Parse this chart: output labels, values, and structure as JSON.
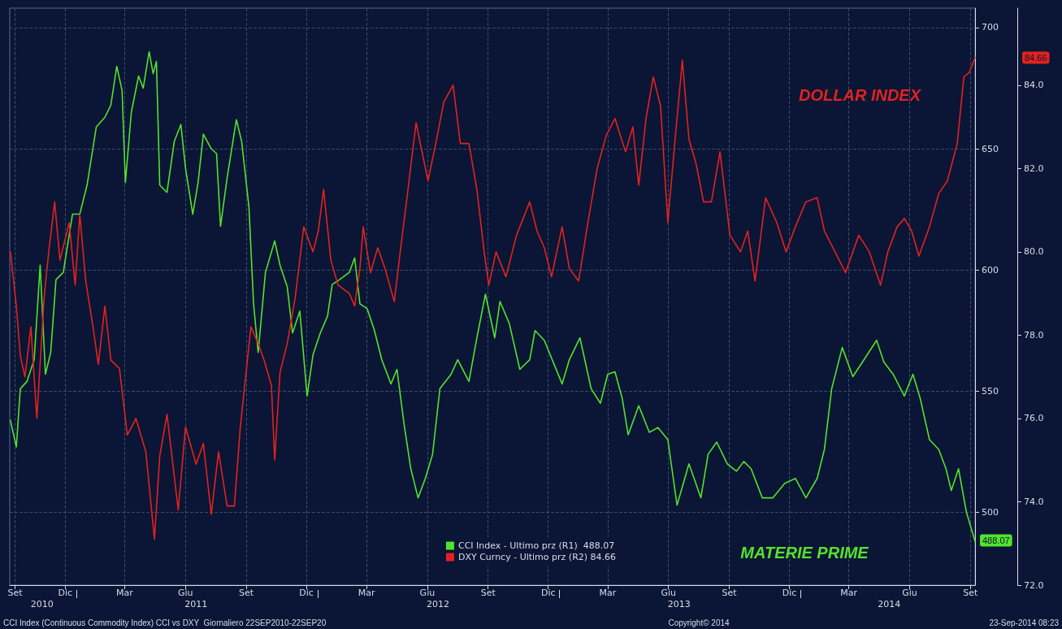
{
  "chart_data": {
    "type": "line",
    "legend": "bottom",
    "grid": true,
    "xlim": [
      "2010-09-22",
      "2014-09-22"
    ],
    "xticks": [
      {
        "value": "2010-09-30",
        "label": "Set"
      },
      {
        "value": "2010-12-15",
        "label": "Dic"
      },
      {
        "value": "2011-03-15",
        "label": "Mar"
      },
      {
        "value": "2011-06-15",
        "label": "Giu"
      },
      {
        "value": "2011-09-15",
        "label": "Set"
      },
      {
        "value": "2011-12-15",
        "label": "Dic"
      },
      {
        "value": "2012-03-15",
        "label": "Mar"
      },
      {
        "value": "2012-06-15",
        "label": "Giu"
      },
      {
        "value": "2012-09-15",
        "label": "Set"
      },
      {
        "value": "2012-12-15",
        "label": "Dic"
      },
      {
        "value": "2013-03-15",
        "label": "Mar"
      },
      {
        "value": "2013-06-15",
        "label": "Giu"
      },
      {
        "value": "2013-09-15",
        "label": "Set"
      },
      {
        "value": "2013-12-15",
        "label": "Dic"
      },
      {
        "value": "2014-03-15",
        "label": "Mar"
      },
      {
        "value": "2014-06-15",
        "label": "Giu"
      },
      {
        "value": "2014-09-15",
        "label": "Set"
      }
    ],
    "x2lim": [
      "2010-09-22",
      "2014-09-22"
    ],
    "x2ticks": [
      {
        "value": "2010-11-10",
        "label": "2010"
      },
      {
        "value": "2011-01-01",
        "label": null
      },
      {
        "value": "2011-07-01",
        "label": "2011"
      },
      {
        "value": "2012-01-01",
        "label": null
      },
      {
        "value": "2012-07-01",
        "label": "2012"
      },
      {
        "value": "2013-01-01",
        "label": null
      },
      {
        "value": "2013-07-01",
        "label": "2013"
      },
      {
        "value": "2014-01-01",
        "label": null
      },
      {
        "value": "2014-05-15",
        "label": "2014"
      }
    ],
    "ylim": [
      470,
      708
    ],
    "yticks": [
      500,
      550,
      600,
      650,
      700
    ],
    "y2lim": [
      72,
      85.85
    ],
    "y2ticks": [
      {
        "value": 72,
        "label": "72.0"
      },
      {
        "value": 74,
        "label": "74.0"
      },
      {
        "value": 76,
        "label": "76.0"
      },
      {
        "value": 78,
        "label": "78.0"
      },
      {
        "value": 80,
        "label": "80.0"
      },
      {
        "value": 82,
        "label": "82.0"
      },
      {
        "value": 84,
        "label": "84.0"
      }
    ],
    "annotations": [
      "DOLLAR INDEX",
      "MATERIE PRIME",
      "CCI Index (Continuous Commodity Index) CCI vs DXY  Giornaliero 22SEP2010-22SEP20",
      "Copyright© 2014",
      "23-Sep-2014 08:23",
      "488.07",
      "84.66"
    ],
    "series": [
      {
        "name": "CCI Index - Ultimo prz (R1)  488.07",
        "color": "#52e32c",
        "x": [
          "2010-09-23",
          "2010-10-02",
          "2010-10-08",
          "2010-10-18",
          "2010-10-29",
          "2010-11-07",
          "2010-11-15",
          "2010-11-23",
          "2010-12-01",
          "2010-12-12",
          "2010-12-26",
          "2011-01-06",
          "2011-01-17",
          "2011-01-31",
          "2011-02-13",
          "2011-02-22",
          "2011-03-03",
          "2011-03-11",
          "2011-03-16",
          "2011-03-25",
          "2011-04-05",
          "2011-04-12",
          "2011-04-21",
          "2011-04-27",
          "2011-05-02",
          "2011-05-07",
          "2011-05-18",
          "2011-05-29",
          "2011-06-08",
          "2011-06-15",
          "2011-06-26",
          "2011-07-04",
          "2011-07-12",
          "2011-07-24",
          "2011-08-01",
          "2011-08-07",
          "2011-08-17",
          "2011-08-31",
          "2011-09-08",
          "2011-09-19",
          "2011-09-26",
          "2011-10-03",
          "2011-10-14",
          "2011-10-28",
          "2011-11-05",
          "2011-11-16",
          "2011-11-24",
          "2011-12-05",
          "2011-12-16",
          "2011-12-25",
          "2012-01-05",
          "2012-01-16",
          "2012-01-23",
          "2012-02-03",
          "2012-02-18",
          "2012-02-26",
          "2012-03-05",
          "2012-03-16",
          "2012-03-27",
          "2012-04-07",
          "2012-04-21",
          "2012-04-30",
          "2012-05-11",
          "2012-05-21",
          "2012-06-01",
          "2012-06-12",
          "2012-06-23",
          "2012-07-04",
          "2012-07-21",
          "2012-07-31",
          "2012-08-17",
          "2012-08-29",
          "2012-09-11",
          "2012-09-25",
          "2012-10-03",
          "2012-10-17",
          "2012-11-02",
          "2012-11-17",
          "2012-11-25",
          "2012-12-09",
          "2013-01-05",
          "2013-01-16",
          "2013-02-01",
          "2013-02-18",
          "2013-03-04",
          "2013-03-15",
          "2013-03-26",
          "2013-04-06",
          "2013-04-15",
          "2013-05-01",
          "2013-05-17",
          "2013-05-30",
          "2013-06-14",
          "2013-06-28",
          "2013-07-16",
          "2013-08-03",
          "2013-08-14",
          "2013-08-27",
          "2013-09-12",
          "2013-09-26",
          "2013-10-07",
          "2013-10-18",
          "2013-11-04",
          "2013-11-20",
          "2013-12-08",
          "2013-12-24",
          "2014-01-09",
          "2014-01-26",
          "2014-02-06",
          "2014-02-17",
          "2014-03-05",
          "2014-03-21",
          "2014-04-07",
          "2014-04-26",
          "2014-05-07",
          "2014-05-21",
          "2014-06-07",
          "2014-06-20",
          "2014-07-01",
          "2014-07-15",
          "2014-07-29",
          "2014-08-09",
          "2014-08-17",
          "2014-08-28",
          "2014-09-09",
          "2014-09-22"
        ],
        "values": [
          538,
          527,
          551,
          554,
          563,
          602,
          557,
          566,
          596,
          599,
          623,
          623,
          635,
          659,
          663,
          668,
          684,
          674,
          636,
          665,
          680,
          675,
          690,
          681,
          686,
          635,
          632,
          653,
          660,
          642,
          623,
          636,
          656,
          650,
          648,
          618,
          638,
          662,
          653,
          626,
          586,
          566,
          599,
          612,
          602,
          593,
          574,
          583,
          548,
          565,
          574,
          581,
          594,
          596,
          599,
          605,
          586,
          584,
          575,
          563,
          553,
          559,
          536,
          518,
          506,
          514,
          524,
          551,
          557,
          563,
          554,
          572,
          590,
          572,
          587,
          578,
          559,
          563,
          575,
          571,
          553,
          563,
          572,
          551,
          545,
          557,
          558,
          547,
          532,
          544,
          533,
          535,
          530,
          503,
          520,
          506,
          524,
          529,
          520,
          517,
          521,
          518,
          506,
          506,
          512,
          514,
          506,
          514,
          526,
          551,
          568,
          556,
          563,
          571,
          562,
          557,
          548,
          557,
          547,
          530,
          526,
          518,
          509,
          518,
          500,
          488.07
        ]
      },
      {
        "name": "DXY Curncy - Ultimo prz (R2) 84.66",
        "color": "#e3221e",
        "axis": "y2",
        "x": [
          "2010-09-23",
          "2010-10-02",
          "2010-10-08",
          "2010-10-15",
          "2010-10-24",
          "2010-11-02",
          "2010-11-13",
          "2010-11-20",
          "2010-11-29",
          "2010-12-07",
          "2010-12-21",
          "2010-12-30",
          "2011-01-06",
          "2011-01-15",
          "2011-01-26",
          "2011-02-03",
          "2011-02-13",
          "2011-02-22",
          "2011-03-07",
          "2011-03-19",
          "2011-04-01",
          "2011-04-16",
          "2011-04-29",
          "2011-05-07",
          "2011-05-18",
          "2011-06-04",
          "2011-06-15",
          "2011-07-01",
          "2011-07-12",
          "2011-07-24",
          "2011-08-04",
          "2011-08-17",
          "2011-08-28",
          "2011-09-06",
          "2011-09-22",
          "2011-10-03",
          "2011-10-12",
          "2011-10-23",
          "2011-10-28",
          "2011-11-05",
          "2011-11-16",
          "2011-11-28",
          "2011-12-11",
          "2011-12-25",
          "2012-01-02",
          "2012-01-10",
          "2012-01-21",
          "2012-02-01",
          "2012-02-18",
          "2012-02-26",
          "2012-03-05",
          "2012-03-10",
          "2012-03-21",
          "2012-04-01",
          "2012-04-12",
          "2012-04-26",
          "2012-05-05",
          "2012-05-16",
          "2012-05-29",
          "2012-06-16",
          "2012-06-29",
          "2012-07-10",
          "2012-07-24",
          "2012-08-04",
          "2012-08-17",
          "2012-08-29",
          "2012-09-09",
          "2012-09-16",
          "2012-09-27",
          "2012-10-12",
          "2012-10-28",
          "2012-11-17",
          "2012-11-28",
          "2012-12-09",
          "2012-12-20",
          "2013-01-05",
          "2013-01-16",
          "2013-01-30",
          "2013-02-12",
          "2013-02-27",
          "2013-03-13",
          "2013-03-26",
          "2013-04-11",
          "2013-04-22",
          "2013-05-01",
          "2013-05-12",
          "2013-05-23",
          "2013-06-03",
          "2013-06-14",
          "2013-06-25",
          "2013-07-06",
          "2013-07-16",
          "2013-07-27",
          "2013-08-07",
          "2013-08-19",
          "2013-09-01",
          "2013-09-16",
          "2013-10-02",
          "2013-10-13",
          "2013-10-24",
          "2013-11-09",
          "2013-11-26",
          "2013-12-10",
          "2013-12-24",
          "2014-01-09",
          "2014-01-26",
          "2014-02-06",
          "2014-02-22",
          "2014-03-10",
          "2014-03-30",
          "2014-04-15",
          "2014-05-02",
          "2014-05-13",
          "2014-05-27",
          "2014-06-07",
          "2014-06-18",
          "2014-06-29",
          "2014-07-15",
          "2014-07-29",
          "2014-08-11",
          "2014-08-26",
          "2014-09-05",
          "2014-09-13",
          "2014-09-22"
        ],
        "values": [
          80.0,
          78.7,
          77.5,
          77.0,
          78.2,
          76.0,
          78.9,
          80.0,
          81.2,
          79.8,
          80.7,
          79.2,
          80.9,
          79.3,
          78.2,
          77.3,
          78.7,
          77.4,
          77.2,
          75.6,
          76.0,
          75.2,
          73.1,
          75.1,
          76.1,
          73.8,
          75.8,
          74.9,
          75.4,
          73.7,
          75.2,
          73.9,
          73.9,
          75.8,
          78.2,
          77.8,
          77.4,
          76.8,
          75.0,
          77.1,
          77.8,
          78.9,
          80.6,
          80.0,
          80.5,
          81.5,
          79.8,
          79.2,
          79.0,
          78.7,
          79.6,
          80.6,
          79.5,
          80.1,
          79.6,
          78.8,
          80.0,
          81.4,
          83.1,
          81.7,
          82.7,
          83.6,
          84.0,
          82.6,
          82.6,
          81.5,
          80.0,
          79.2,
          80.0,
          79.4,
          80.4,
          81.2,
          80.5,
          80.1,
          79.4,
          80.6,
          79.6,
          79.3,
          80.6,
          82.0,
          82.8,
          83.2,
          82.4,
          83.0,
          81.6,
          83.2,
          84.2,
          83.5,
          80.7,
          82.7,
          84.6,
          82.7,
          82.1,
          81.2,
          81.2,
          82.4,
          80.4,
          80.0,
          80.5,
          79.3,
          81.3,
          80.7,
          80.0,
          80.6,
          81.2,
          81.3,
          80.5,
          80.0,
          79.5,
          80.4,
          80.0,
          79.2,
          80.0,
          80.6,
          80.8,
          80.5,
          79.9,
          80.6,
          81.4,
          81.7,
          82.6,
          84.2,
          84.3,
          84.66
        ]
      }
    ]
  }
}
